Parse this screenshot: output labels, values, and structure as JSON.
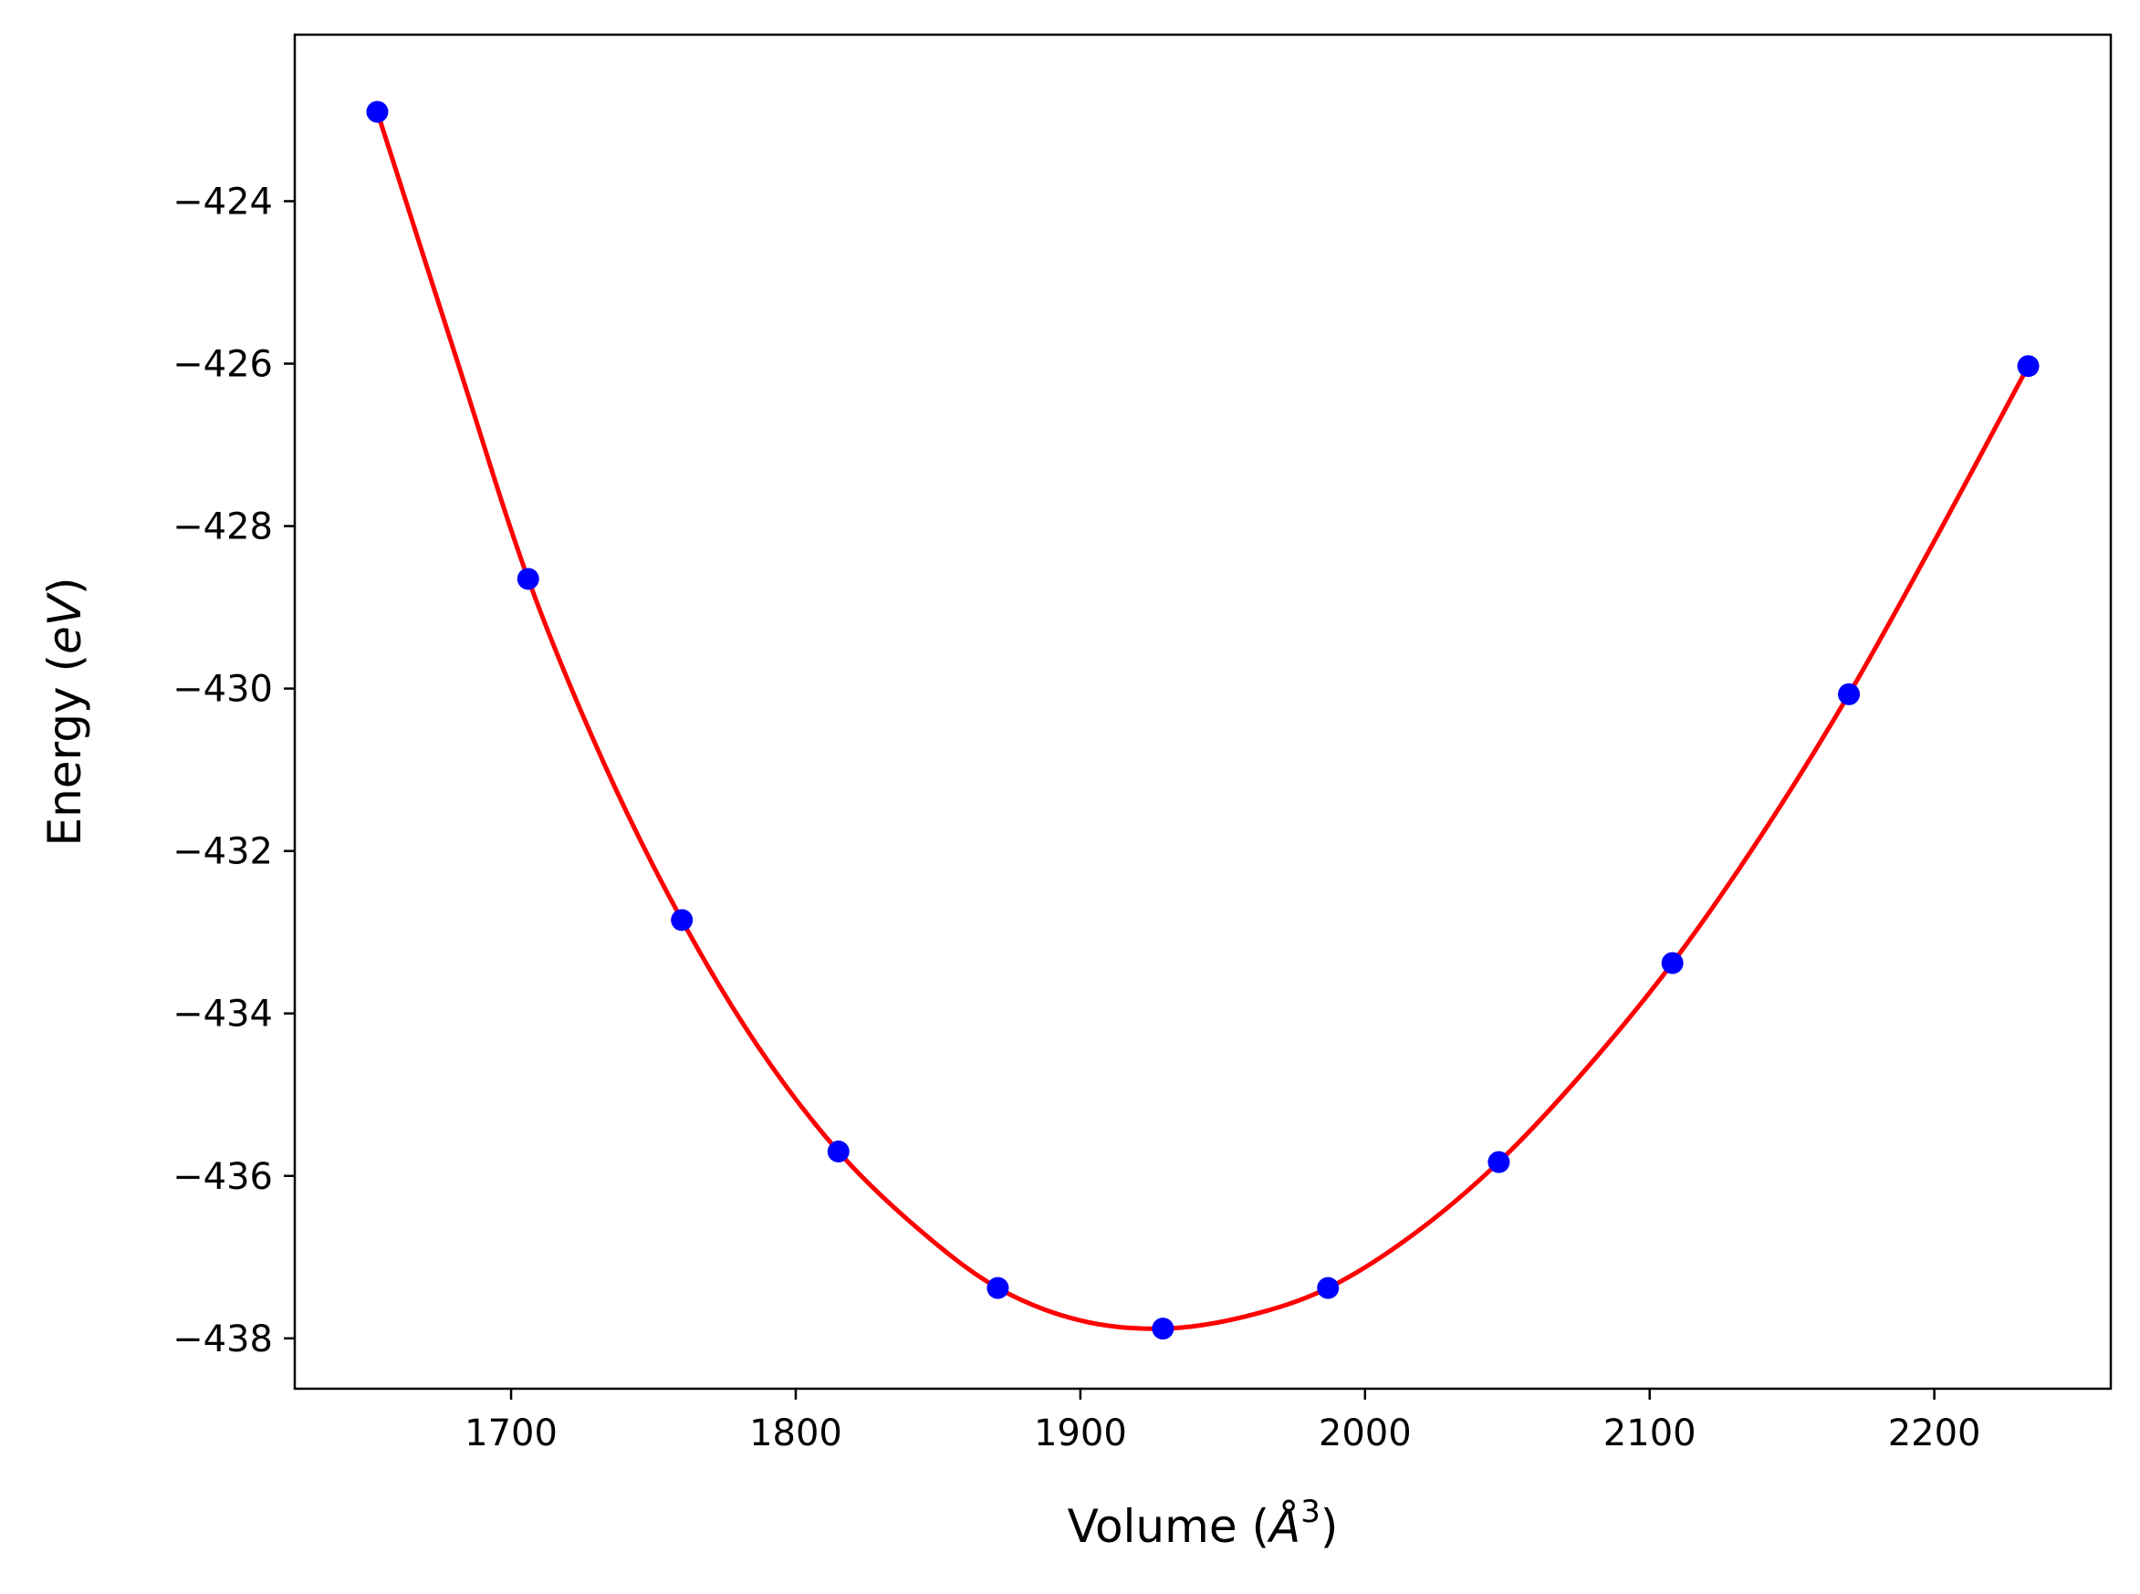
{
  "chart_data": {
    "type": "scatter",
    "title": "",
    "xlabel": {
      "prefix": "Volume (",
      "symbol": "Å",
      "superscript": "3",
      "suffix": ")"
    },
    "ylabel": {
      "prefix": "Energy (",
      "unit": "eV",
      "suffix": ")"
    },
    "xlim": [
      1624,
      2262
    ],
    "ylim": [
      -438.62,
      -421.95
    ],
    "x_ticks": [
      1700,
      1800,
      1900,
      2000,
      2100,
      2200
    ],
    "x_tick_labels": [
      "1700",
      "1800",
      "1900",
      "2000",
      "2100",
      "2200"
    ],
    "y_ticks": [
      -424,
      -426,
      -428,
      -430,
      -432,
      -434,
      -436,
      -438
    ],
    "y_tick_labels": [
      "−424",
      "−426",
      "−428",
      "−430",
      "−432",
      "−434",
      "−436",
      "−438"
    ],
    "grid": false,
    "legend": "none",
    "series": [
      {
        "kind": "points",
        "color": "#0000ff",
        "x": [
          1653,
          1706,
          1760,
          1815,
          1871,
          1929,
          1987,
          2047,
          2108,
          2170,
          2233
        ],
        "y": [
          -422.9,
          -428.65,
          -432.85,
          -435.7,
          -437.38,
          -437.88,
          -437.38,
          -435.83,
          -433.38,
          -430.07,
          -426.03
        ]
      },
      {
        "kind": "fit",
        "color": "#ff0000",
        "x": [
          1653,
          1680,
          1706,
          1733,
          1760,
          1787,
          1815,
          1843,
          1871,
          1900,
          1929,
          1958,
          1987,
          2017,
          2047,
          2077,
          2108,
          2139,
          2170,
          2201,
          2233
        ],
        "y": [
          -422.9,
          -425.85,
          -428.65,
          -430.95,
          -432.85,
          -434.42,
          -435.7,
          -436.65,
          -437.38,
          -437.78,
          -437.88,
          -437.73,
          -437.38,
          -436.72,
          -435.83,
          -434.71,
          -433.38,
          -431.82,
          -430.07,
          -428.12,
          -426.03
        ]
      }
    ]
  }
}
